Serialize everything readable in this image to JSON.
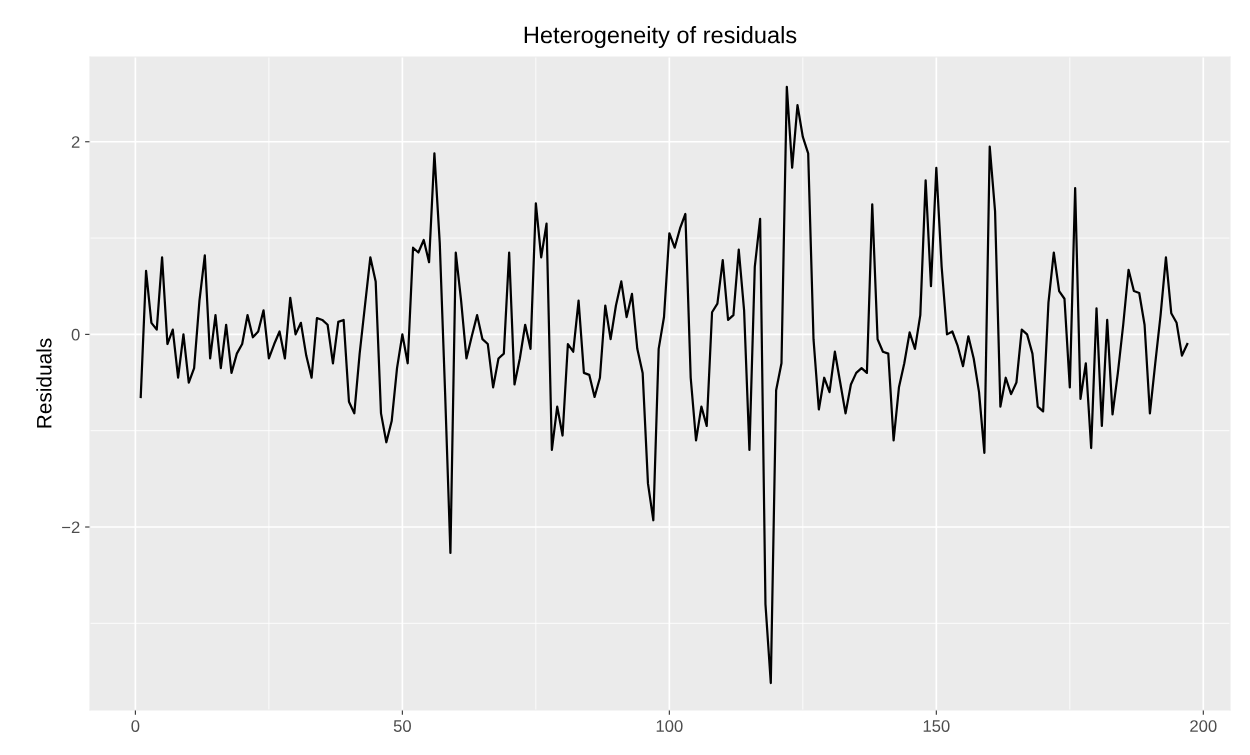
{
  "chart_data": {
    "type": "line",
    "title": "Heterogeneity of residuals",
    "ylabel": "Residuals",
    "series": [
      {
        "color": "#000000",
        "x": [
          1,
          2,
          3,
          4,
          5,
          6,
          7,
          8,
          9,
          10,
          11,
          12,
          13,
          14,
          15,
          16,
          17,
          18,
          19,
          20,
          21,
          22,
          23,
          24,
          25,
          26,
          27,
          28,
          29,
          30,
          31,
          32,
          33,
          34,
          35,
          36,
          37,
          38,
          39,
          40,
          41,
          42,
          43,
          44,
          45,
          46,
          47,
          48,
          49,
          50,
          51,
          52,
          53,
          54,
          55,
          56,
          57,
          58,
          59,
          60,
          61,
          62,
          63,
          64,
          65,
          66,
          67,
          68,
          69,
          70,
          71,
          72,
          73,
          74,
          75,
          76,
          77,
          78,
          79,
          80,
          81,
          82,
          83,
          84,
          85,
          86,
          87,
          88,
          89,
          90,
          91,
          92,
          93,
          94,
          95,
          96,
          97,
          98,
          99,
          100,
          101,
          102,
          103,
          104,
          105,
          106,
          107,
          108,
          109,
          110,
          111,
          112,
          113,
          114,
          115,
          116,
          117,
          118,
          119,
          120,
          121,
          122,
          123,
          124,
          125,
          126,
          127,
          128,
          129,
          130,
          131,
          132,
          133,
          134,
          135,
          136,
          137,
          138,
          139,
          140,
          141,
          142,
          143,
          144,
          145,
          146,
          147,
          148,
          149,
          150,
          151,
          152,
          153,
          154,
          155,
          156,
          157,
          158,
          159,
          160,
          161,
          162,
          163,
          164,
          165,
          166,
          167,
          168,
          169,
          170,
          171,
          172,
          173,
          174,
          175,
          176,
          177,
          178,
          179,
          180,
          181,
          182,
          183,
          184,
          185,
          186,
          187,
          188,
          189,
          190,
          191,
          192,
          193,
          194,
          195,
          196,
          197
        ],
        "values": [
          -0.65,
          0.66,
          0.12,
          0.05,
          0.8,
          -0.1,
          0.05,
          -0.45,
          0.0,
          -0.5,
          -0.35,
          0.35,
          0.82,
          -0.25,
          0.2,
          -0.35,
          0.1,
          -0.4,
          -0.2,
          -0.1,
          0.2,
          -0.03,
          0.03,
          0.25,
          -0.25,
          -0.1,
          0.03,
          -0.25,
          0.38,
          0.0,
          0.12,
          -0.22,
          -0.45,
          0.17,
          0.15,
          0.1,
          -0.3,
          0.13,
          0.15,
          -0.7,
          -0.82,
          -0.2,
          0.3,
          0.8,
          0.55,
          -0.82,
          -1.12,
          -0.9,
          -0.35,
          0.0,
          -0.3,
          0.9,
          0.85,
          0.98,
          0.75,
          1.88,
          0.95,
          -0.6,
          -2.27,
          0.85,
          0.35,
          -0.25,
          -0.02,
          0.2,
          -0.05,
          -0.1,
          -0.55,
          -0.25,
          -0.2,
          0.85,
          -0.52,
          -0.25,
          0.1,
          -0.15,
          1.36,
          0.8,
          1.15,
          -1.2,
          -0.75,
          -1.05,
          -0.1,
          -0.18,
          0.35,
          -0.4,
          -0.42,
          -0.65,
          -0.45,
          0.3,
          -0.05,
          0.3,
          0.55,
          0.18,
          0.42,
          -0.15,
          -0.4,
          -1.55,
          -1.93,
          -0.15,
          0.18,
          1.05,
          0.9,
          1.1,
          1.25,
          -0.45,
          -1.1,
          -0.75,
          -0.95,
          0.23,
          0.32,
          0.77,
          0.15,
          0.2,
          0.88,
          0.25,
          -1.2,
          0.7,
          1.2,
          -2.8,
          -3.62,
          -0.58,
          -0.3,
          2.57,
          1.73,
          2.38,
          2.05,
          1.88,
          -0.05,
          -0.78,
          -0.45,
          -0.6,
          -0.18,
          -0.5,
          -0.82,
          -0.52,
          -0.4,
          -0.35,
          -0.4,
          1.35,
          -0.05,
          -0.18,
          -0.2,
          -1.1,
          -0.55,
          -0.3,
          0.02,
          -0.15,
          0.2,
          1.6,
          0.5,
          1.73,
          0.7,
          0.0,
          0.03,
          -0.12,
          -0.33,
          -0.02,
          -0.25,
          -0.6,
          -1.23,
          1.95,
          1.28,
          -0.75,
          -0.45,
          -0.62,
          -0.5,
          0.05,
          0.0,
          -0.2,
          -0.75,
          -0.8,
          0.33,
          0.85,
          0.45,
          0.37,
          -0.55,
          1.52,
          -0.67,
          -0.3,
          -1.18,
          0.27,
          -0.95,
          0.15,
          -0.83,
          -0.4,
          0.1,
          0.67,
          0.45,
          0.43,
          0.1,
          -0.82,
          -0.3,
          0.2,
          0.8,
          0.22,
          0.12,
          -0.22,
          -0.1
        ]
      }
    ],
    "xlim": [
      -8.5,
      205
    ],
    "ylim": [
      -3.9,
      2.88
    ],
    "xticks": [
      0,
      50,
      100,
      150,
      200
    ],
    "yticks": [
      {
        "value": -2,
        "label": "−2"
      },
      0,
      2
    ],
    "grid": true,
    "marker": "none",
    "line_style": "solid"
  }
}
